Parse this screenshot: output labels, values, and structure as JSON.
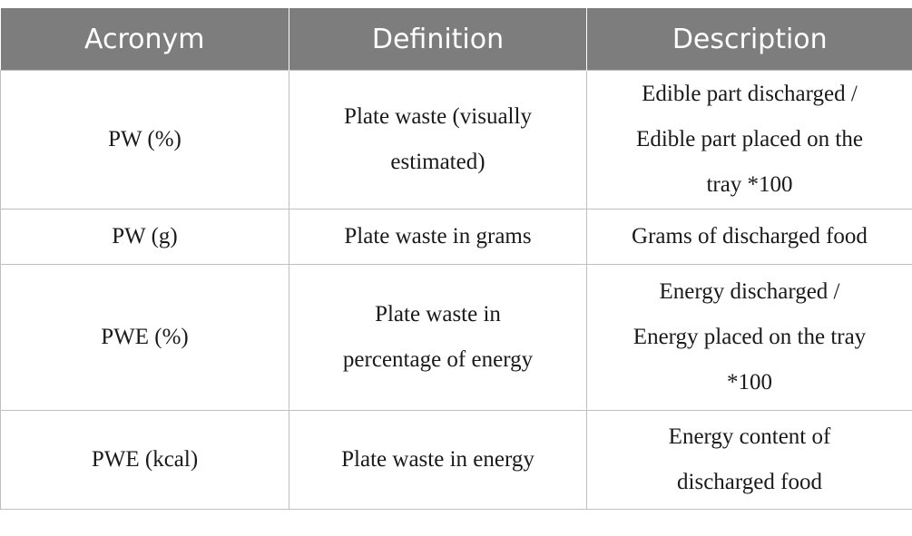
{
  "table": {
    "headers": [
      "Acronym",
      "Definition",
      "Description"
    ],
    "rows": [
      {
        "acronym": "PW (%)",
        "definition_lines": [
          "Plate waste (visually",
          "estimated)"
        ],
        "description_lines": [
          "Edible part discharged /",
          "Edible part placed on the",
          "tray *100"
        ]
      },
      {
        "acronym": "PW (g)",
        "definition_lines": [
          "Plate waste in grams"
        ],
        "description_lines": [
          "Grams of discharged food"
        ]
      },
      {
        "acronym": "PWE (%)",
        "definition_lines": [
          "Plate waste in",
          "percentage of energy"
        ],
        "description_lines": [
          "Energy discharged /",
          "Energy placed on the tray",
          "*100"
        ]
      },
      {
        "acronym": "PWE (kcal)",
        "definition_lines": [
          "Plate waste in energy"
        ],
        "description_lines": [
          "Energy content of",
          "discharged food"
        ]
      }
    ]
  }
}
